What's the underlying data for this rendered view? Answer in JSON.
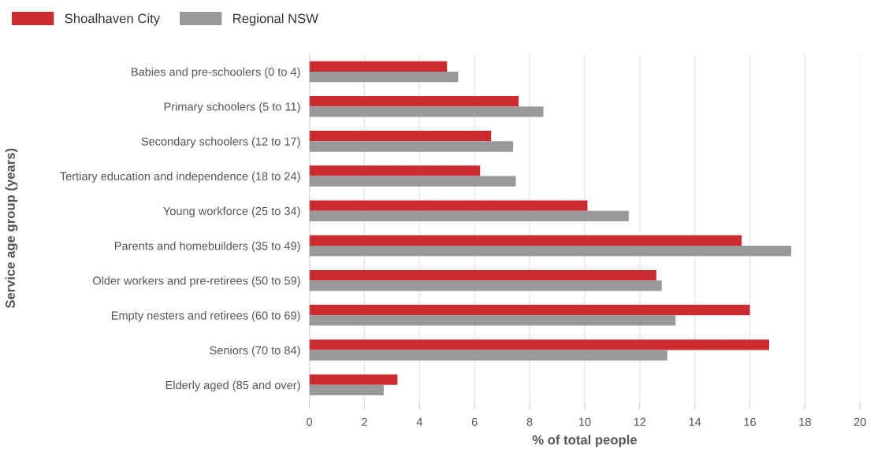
{
  "chart_data": {
    "type": "bar",
    "orientation": "horizontal",
    "xlabel": "% of total people",
    "ylabel": "Service age group (years)",
    "categories": [
      "Babies and pre-schoolers (0 to 4)",
      "Primary schoolers (5 to 11)",
      "Secondary schoolers (12 to 17)",
      "Tertiary education and independence (18 to 24)",
      "Young workforce (25 to 34)",
      "Parents and homebuilders (35 to 49)",
      "Older workers and pre-retirees (50 to 59)",
      "Empty nesters and retirees (60 to 69)",
      "Seniors (70 to 84)",
      "Elderly aged (85 and over)"
    ],
    "series": [
      {
        "name": "Shoalhaven City",
        "color": "#cc2b30",
        "values": [
          5.0,
          7.6,
          6.6,
          6.2,
          10.1,
          15.7,
          12.6,
          16.0,
          16.7,
          3.2
        ]
      },
      {
        "name": "Regional NSW",
        "color": "#999999",
        "values": [
          5.4,
          8.5,
          7.4,
          7.5,
          11.6,
          17.5,
          12.8,
          13.3,
          13.0,
          2.7
        ]
      }
    ],
    "xlim": [
      0,
      20
    ],
    "xticks": [
      0,
      2,
      4,
      6,
      8,
      10,
      12,
      14,
      16,
      18,
      20
    ],
    "grid": "x",
    "legend": "top left"
  }
}
